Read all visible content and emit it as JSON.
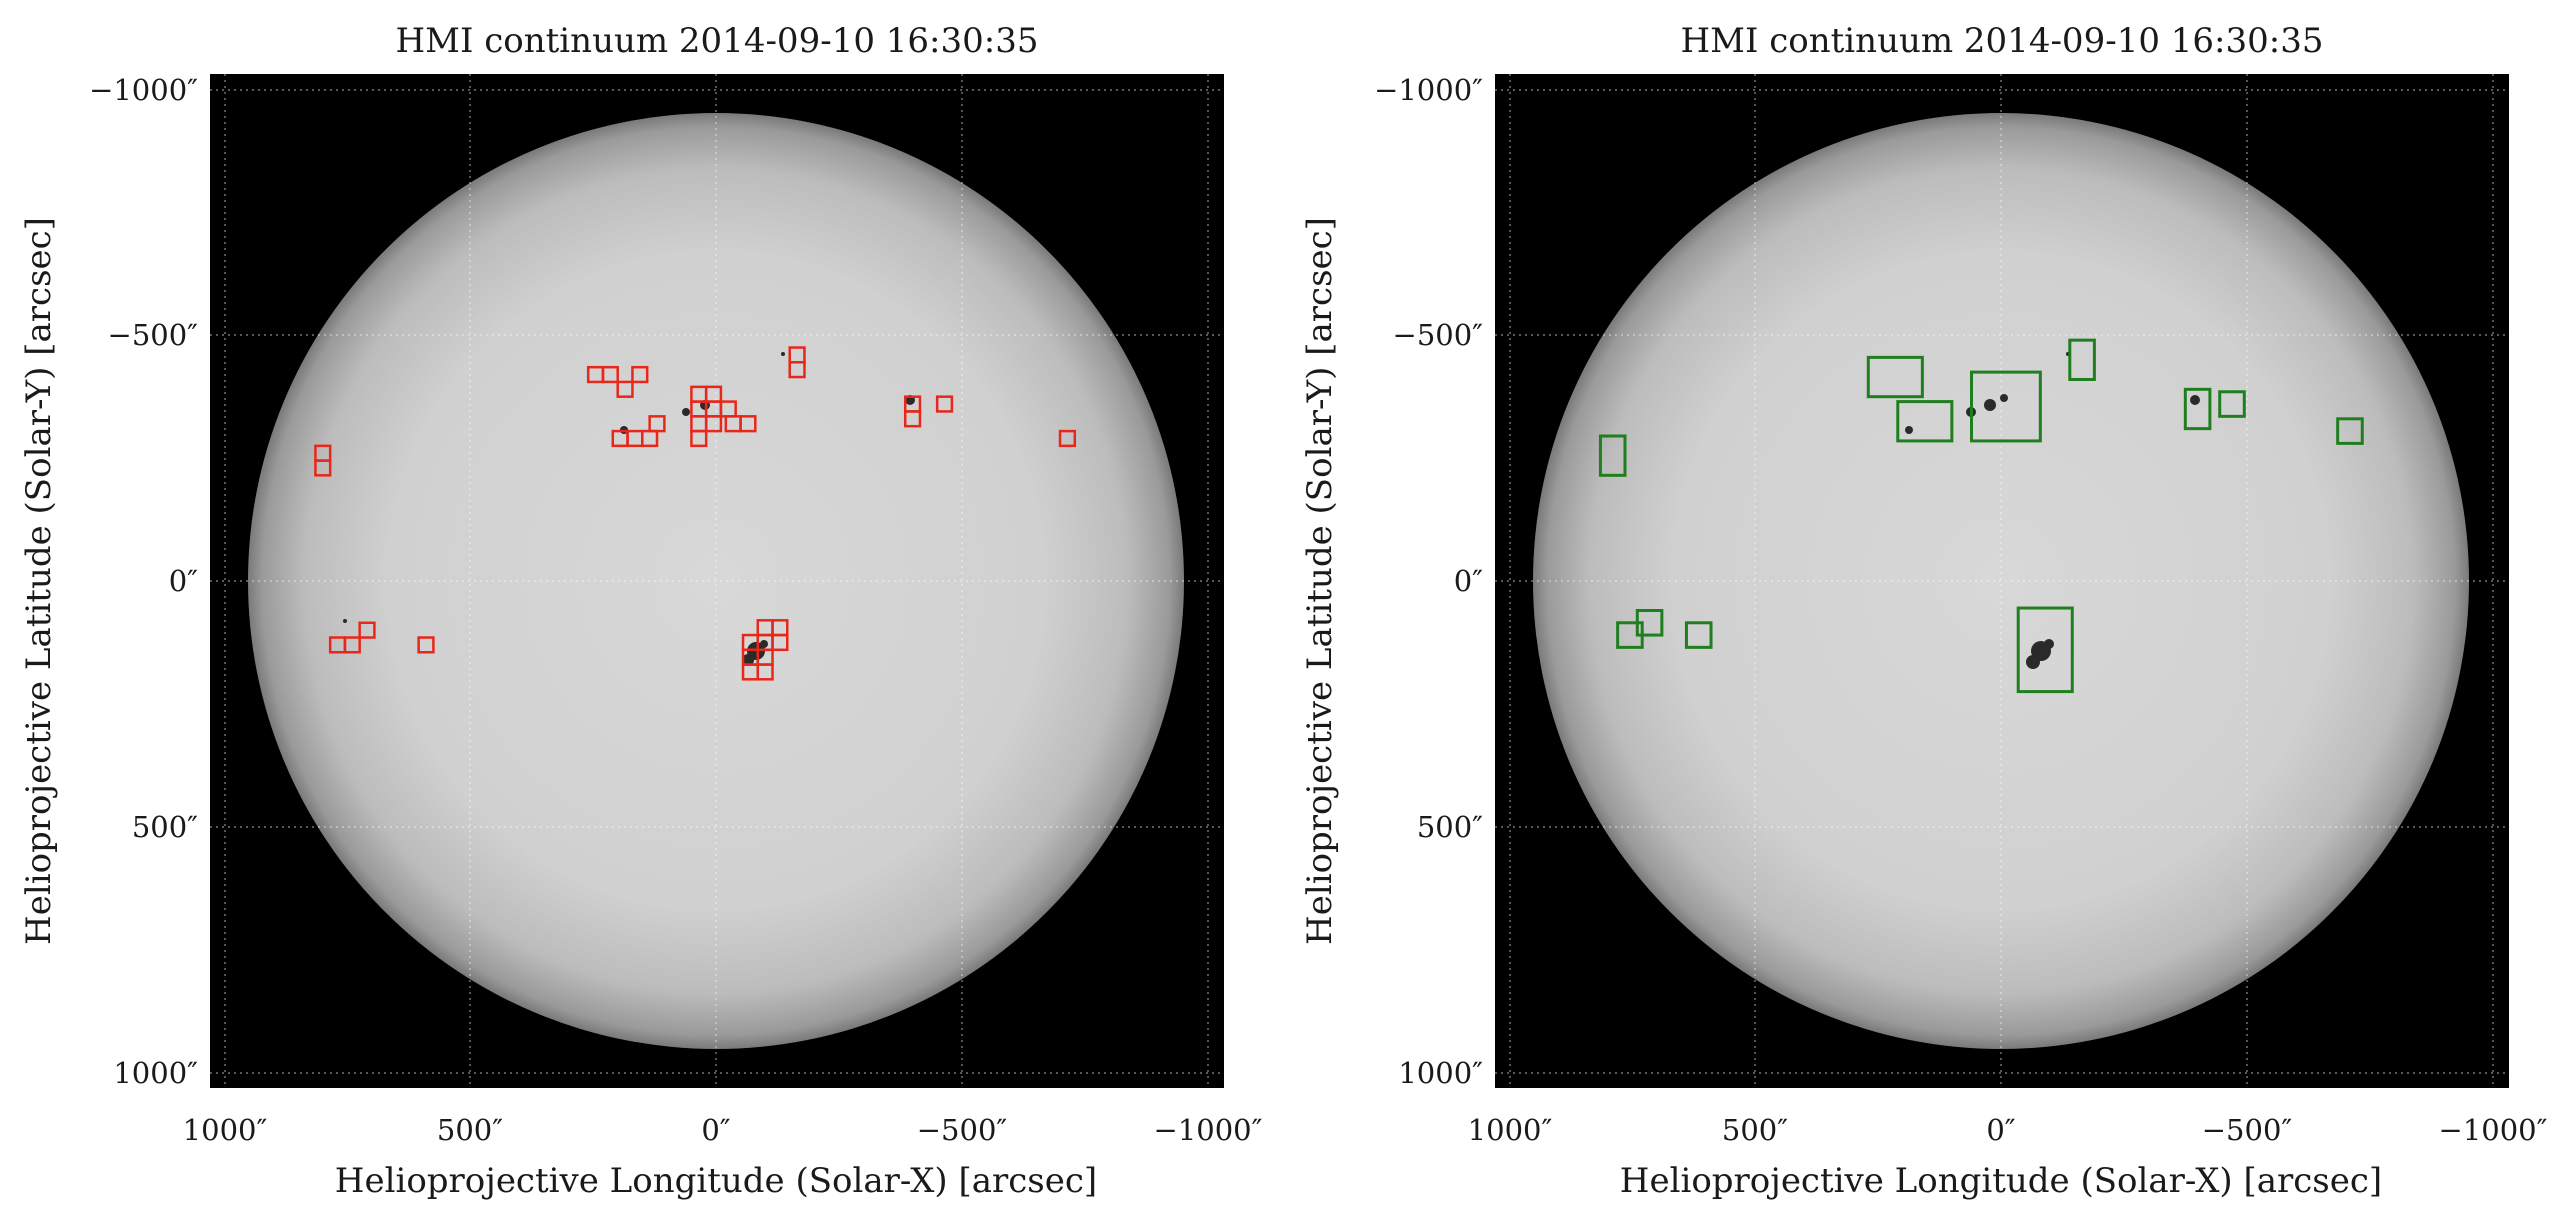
{
  "colors": {
    "panel_left_boxes": "#e8271a",
    "panel_right_boxes": "#1f7f1f",
    "frame_bg": "#000000"
  },
  "panels": [
    {
      "title": "HMI continuum 2014-09-10 16:30:35",
      "xlabel": "Helioprojective Longitude (Solar-X) [arcsec]",
      "ylabel": "Helioprojective Latitude (Solar-Y) [arcsec]",
      "xticks": [
        "1000″",
        "500″",
        "0″",
        "−500″",
        "−1000″"
      ],
      "yticks": [
        "−1000″",
        "−500″",
        "0″",
        "500″",
        "1000″"
      ],
      "box_color": "red",
      "boxes": [
        [
          -815,
          -275,
          30,
          30
        ],
        [
          -815,
          -245,
          30,
          30
        ],
        [
          -755,
          115,
          30,
          30
        ],
        [
          -785,
          115,
          30,
          30
        ],
        [
          -725,
          85,
          30,
          30
        ],
        [
          -605,
          115,
          30,
          30
        ],
        [
          -230,
          -435,
          30,
          30
        ],
        [
          -200,
          -405,
          30,
          30
        ],
        [
          -170,
          -435,
          30,
          30
        ],
        [
          -260,
          -435,
          30,
          30
        ],
        [
          -210,
          -305,
          30,
          30
        ],
        [
          -180,
          -305,
          30,
          30
        ],
        [
          -150,
          -305,
          30,
          30
        ],
        [
          -135,
          -335,
          30,
          30
        ],
        [
          -50,
          -395,
          30,
          30
        ],
        [
          -20,
          -395,
          30,
          30
        ],
        [
          -50,
          -365,
          30,
          30
        ],
        [
          -50,
          -335,
          30,
          30
        ],
        [
          -50,
          -305,
          30,
          30
        ],
        [
          -20,
          -365,
          30,
          30
        ],
        [
          10,
          -365,
          30,
          30
        ],
        [
          20,
          -335,
          30,
          30
        ],
        [
          50,
          -335,
          30,
          30
        ],
        [
          -20,
          -335,
          30,
          30
        ],
        [
          150,
          -475,
          30,
          30
        ],
        [
          150,
          -445,
          30,
          30
        ],
        [
          385,
          -375,
          30,
          30
        ],
        [
          385,
          -345,
          30,
          30
        ],
        [
          450,
          -375,
          30,
          30
        ],
        [
          700,
          -305,
          30,
          30
        ],
        [
          85,
          80,
          30,
          30
        ],
        [
          115,
          80,
          30,
          30
        ],
        [
          55,
          110,
          30,
          30
        ],
        [
          85,
          110,
          30,
          30
        ],
        [
          115,
          110,
          30,
          30
        ],
        [
          55,
          140,
          30,
          30
        ],
        [
          85,
          140,
          30,
          30
        ],
        [
          85,
          170,
          30,
          30
        ],
        [
          55,
          170,
          30,
          30
        ]
      ]
    },
    {
      "title": "HMI continuum 2014-09-10 16:30:35",
      "xlabel": "Helioprojective Longitude (Solar-X) [arcsec]",
      "ylabel": "Helioprojective Latitude (Solar-Y) [arcsec]",
      "xticks": [
        "1000″",
        "500″",
        "0″",
        "−500″",
        "−1000″"
      ],
      "yticks": [
        "−1000″",
        "−500″",
        "0″",
        "500″",
        "1000″"
      ],
      "box_color": "green",
      "boxes": [
        [
          -270,
          -455,
          110,
          80
        ],
        [
          -210,
          -365,
          110,
          80
        ],
        [
          -60,
          -425,
          140,
          140
        ],
        [
          140,
          -490,
          50,
          80
        ],
        [
          -815,
          -295,
          50,
          80
        ],
        [
          -780,
          85,
          50,
          50
        ],
        [
          -740,
          60,
          50,
          50
        ],
        [
          -640,
          85,
          50,
          50
        ],
        [
          375,
          -390,
          50,
          80
        ],
        [
          445,
          -385,
          50,
          50
        ],
        [
          685,
          -330,
          50,
          50
        ],
        [
          35,
          55,
          110,
          170
        ]
      ]
    }
  ]
}
